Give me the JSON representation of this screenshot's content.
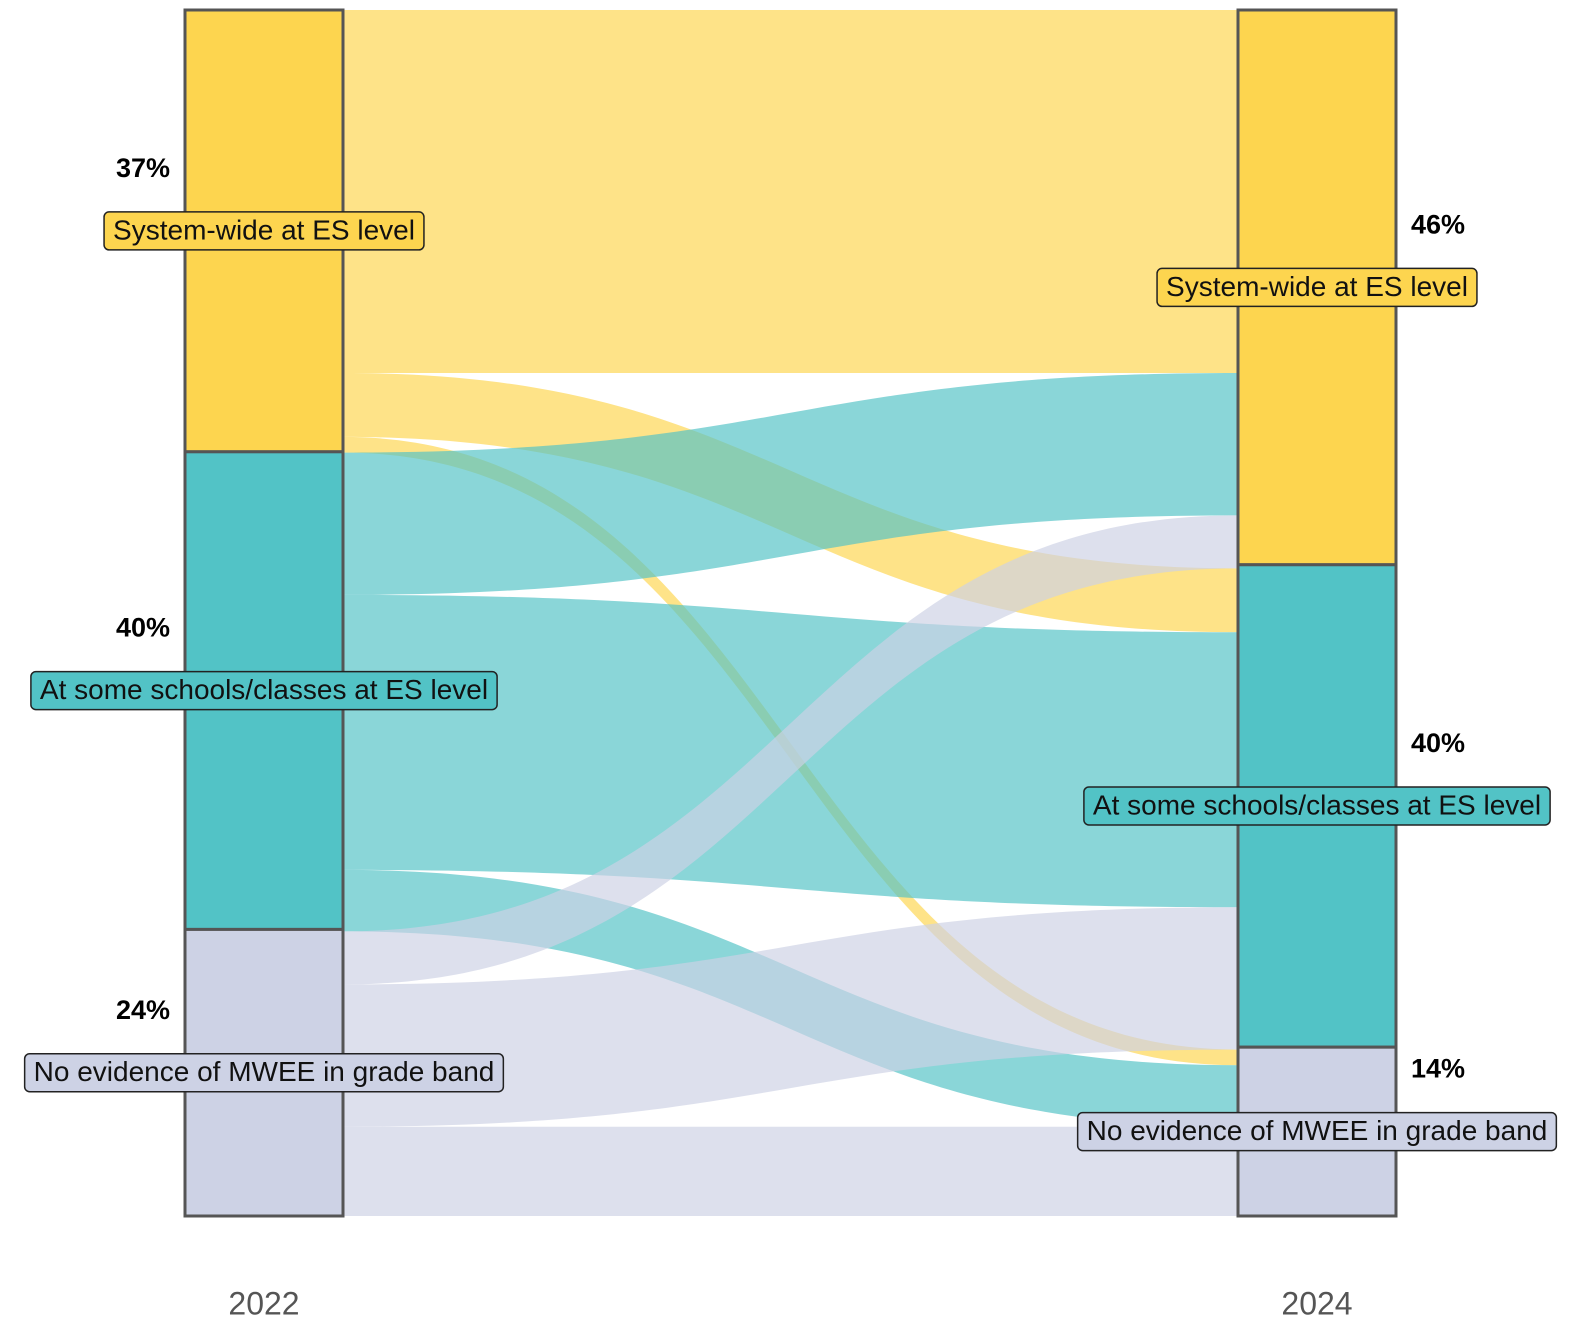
{
  "chart_data": {
    "type": "alluvial",
    "colors": [
      "#FDD54F",
      "#52C3C6",
      "#CDD2E5"
    ],
    "columns": [
      {
        "label": "2022",
        "nodes": [
          {
            "name": "System-wide at ES level",
            "value": 37,
            "value_label": "37%"
          },
          {
            "name": "At some schools/classes at ES level",
            "value": 40,
            "value_label": "40%"
          },
          {
            "name": "No evidence of MWEE in grade band",
            "value": 24,
            "value_label": "24%"
          }
        ]
      },
      {
        "label": "2024",
        "nodes": [
          {
            "name": "System-wide at ES level",
            "value": 46,
            "value_label": "46%"
          },
          {
            "name": "At some schools/classes at ES level",
            "value": 40,
            "value_label": "40%"
          },
          {
            "name": "No evidence of MWEE in grade band",
            "value": 14,
            "value_label": "14%"
          }
        ]
      }
    ],
    "flows": [
      {
        "source": 0,
        "target": 0,
        "value": 30.1
      },
      {
        "source": 0,
        "target": 1,
        "value": 5.3
      },
      {
        "source": 0,
        "target": 2,
        "value": 1.3
      },
      {
        "source": 1,
        "target": 0,
        "value": 11.8
      },
      {
        "source": 1,
        "target": 1,
        "value": 22.8
      },
      {
        "source": 1,
        "target": 2,
        "value": 5.1
      },
      {
        "source": 2,
        "target": 0,
        "value": 4.4
      },
      {
        "source": 2,
        "target": 1,
        "value": 11.8
      },
      {
        "source": 2,
        "target": 2,
        "value": 7.4
      }
    ]
  }
}
